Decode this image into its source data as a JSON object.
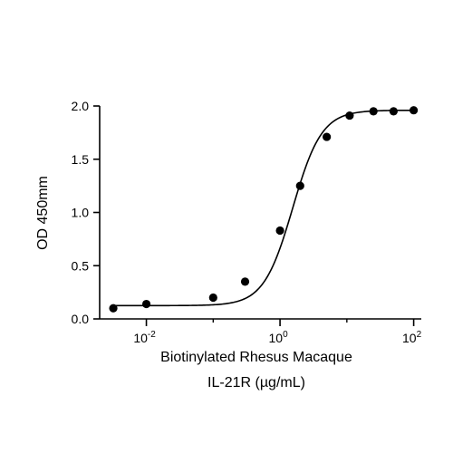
{
  "chart_data": {
    "type": "scatter",
    "title": "",
    "xlabel_lines": [
      "Biotinylated Rhesus Macaque",
      "IL-21R (µg/mL)"
    ],
    "ylabel": "OD 450mm",
    "x_scale": "log",
    "xlim": [
      0.002,
      130
    ],
    "ylim": [
      0,
      2.0
    ],
    "y_ticks": [
      0.0,
      0.5,
      1.0,
      1.5,
      2.0
    ],
    "y_tick_labels": [
      "0.0",
      "0.5",
      "1.0",
      "1.5",
      "2.0"
    ],
    "x_major_ticks": [
      0.01,
      1,
      100
    ],
    "x_tick_labels": [
      {
        "base": "10",
        "exp": "-2"
      },
      {
        "base": "10",
        "exp": "0"
      },
      {
        "base": "10",
        "exp": "2"
      }
    ],
    "x_minor_ticks": [
      0.001,
      0.1,
      10
    ],
    "grid": false,
    "legend": "none",
    "series": [
      {
        "points": [
          {
            "x": 0.0032,
            "y": 0.1
          },
          {
            "x": 0.01,
            "y": 0.14
          },
          {
            "x": 0.1,
            "y": 0.2
          },
          {
            "x": 0.3,
            "y": 0.35
          },
          {
            "x": 1.0,
            "y": 0.83
          },
          {
            "x": 2.0,
            "y": 1.25
          },
          {
            "x": 5.0,
            "y": 1.71
          },
          {
            "x": 11.0,
            "y": 1.91
          },
          {
            "x": 25.0,
            "y": 1.95
          },
          {
            "x": 50.0,
            "y": 1.95
          },
          {
            "x": 100.0,
            "y": 1.96
          }
        ],
        "fit": {
          "bottom": 0.125,
          "top": 1.96,
          "ec50": 1.55,
          "hill": 2.0
        }
      }
    ]
  }
}
